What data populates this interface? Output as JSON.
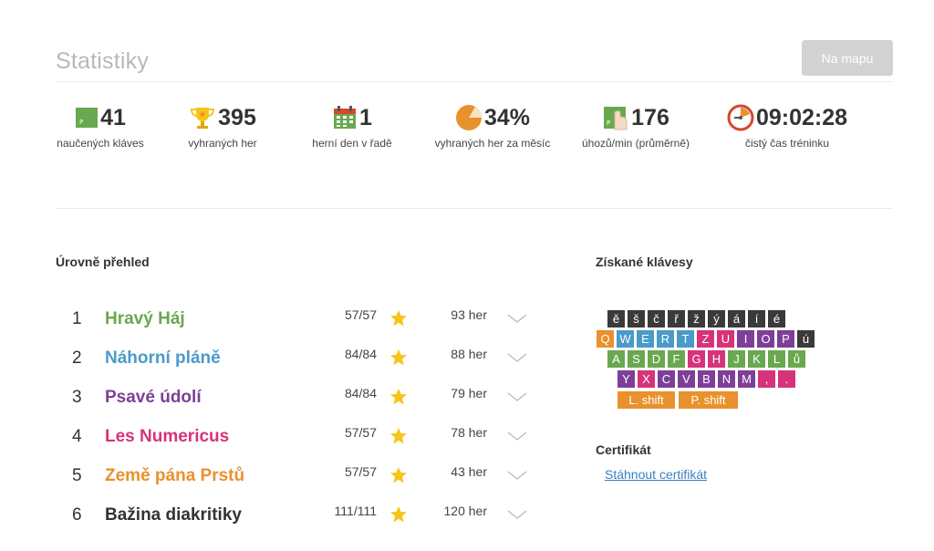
{
  "header": {
    "title": "Statistiky",
    "map_button": "Na mapu"
  },
  "stats": [
    {
      "value": "41",
      "label": "naučených kláves",
      "icon": "green-key-icon"
    },
    {
      "value": "395",
      "label": "vyhraných her",
      "icon": "trophy-icon"
    },
    {
      "value": "1",
      "label": "herní den v řadě",
      "icon": "calendar-icon"
    },
    {
      "value": "34%",
      "label": "vyhraných her za měsíc",
      "icon": "pie-chart-icon"
    },
    {
      "value": "176",
      "label": "úhozů/min (průměrně)",
      "icon": "finger-key-icon"
    },
    {
      "value": "09:02:28",
      "label": "čistý čas tréninku",
      "icon": "stopwatch-icon"
    }
  ],
  "levels": {
    "title": "Úrovně přehled",
    "items": [
      {
        "num": "1",
        "name": "Hravý Háj",
        "color": "#6aa84f",
        "score": "57/57",
        "games": "93 her"
      },
      {
        "num": "2",
        "name": "Náhorní pláně",
        "color": "#4a9bc9",
        "score": "84/84",
        "games": "88 her"
      },
      {
        "num": "3",
        "name": "Psavé údolí",
        "color": "#7e3f98",
        "score": "84/84",
        "games": "79 her"
      },
      {
        "num": "4",
        "name": "Les Numericus",
        "color": "#d6337a",
        "score": "57/57",
        "games": "78 her"
      },
      {
        "num": "5",
        "name": "Země pána Prstů",
        "color": "#e8912d",
        "score": "57/57",
        "games": "43 her"
      },
      {
        "num": "6",
        "name": "Bažina diakritiky",
        "color": "#333333",
        "score": "111/111",
        "games": "120 her"
      }
    ]
  },
  "keys_section": {
    "title": "Získané klávesy",
    "rows": [
      [
        "ě",
        "š",
        "č",
        "ř",
        "ž",
        "ý",
        "á",
        "í",
        "é"
      ],
      [
        "Q",
        "W",
        "E",
        "R",
        "T",
        "Z",
        "U",
        "I",
        "O",
        "P",
        "ú"
      ],
      [
        "A",
        "S",
        "D",
        "F",
        "G",
        "H",
        "J",
        "K",
        "L",
        "ů"
      ],
      [
        "Y",
        "X",
        "C",
        "V",
        "B",
        "N",
        "M",
        ",",
        "."
      ],
      [
        "L. shift",
        "P. shift"
      ]
    ]
  },
  "certificate": {
    "title": "Certifikát",
    "link": "Stáhnout certifikát"
  },
  "colors": {
    "dark": "#3a3a3a",
    "orange": "#e8912d",
    "blue": "#4a9bc9",
    "purple": "#7e3f98",
    "pink": "#d6337a",
    "green": "#6aa84f",
    "star": "#f5c518"
  }
}
